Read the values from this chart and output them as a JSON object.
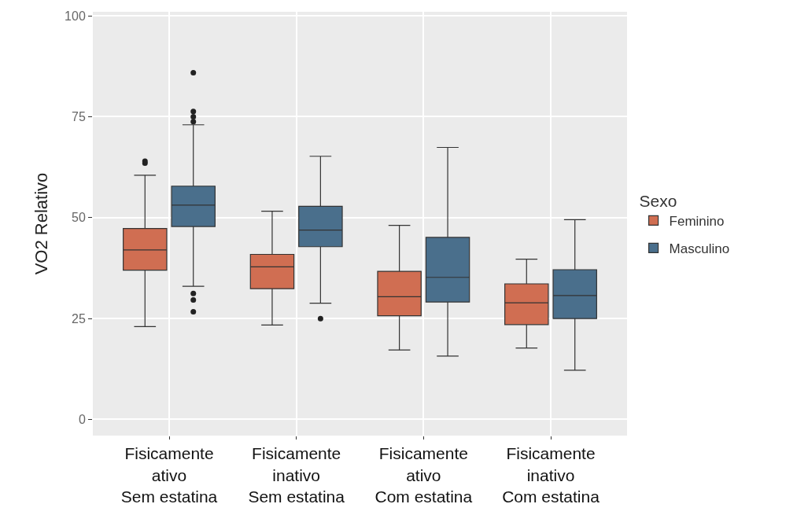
{
  "chart_data": {
    "type": "box",
    "ylabel": "VO2 Relativo",
    "legend_title": "Sexo",
    "categories": [
      "Fisicamente\nativo\nSem estatina",
      "Fisicamente\ninativo\nSem estatina",
      "Fisicamente\nativo\nCom estatina",
      "Fisicamente\ninativo\nCom estatina"
    ],
    "series": [
      {
        "name": "Feminino",
        "color": "#d06e52",
        "boxes": [
          {
            "low": 23,
            "q1": 37,
            "median": 42,
            "q3": 47.3,
            "high": 60.5,
            "outliers": [
              63.5,
              64
            ]
          },
          {
            "low": 23.4,
            "q1": 32.4,
            "median": 37.8,
            "q3": 40.9,
            "high": 51.6
          },
          {
            "low": 17.2,
            "q1": 25.7,
            "median": 30.4,
            "q3": 36.7,
            "high": 48.1
          },
          {
            "low": 17.7,
            "q1": 23.5,
            "median": 28.9,
            "q3": 33.6,
            "high": 39.7
          }
        ]
      },
      {
        "name": "Masculino",
        "color": "#4a6f8c",
        "boxes": [
          {
            "low": 33,
            "q1": 47.8,
            "median": 53.1,
            "q3": 57.8,
            "high": 73,
            "outliers": [
              26.7,
              29.6,
              31.2,
              73.8,
              75,
              76.3,
              85.9
            ]
          },
          {
            "low": 28.8,
            "q1": 42.8,
            "median": 46.9,
            "q3": 52.8,
            "high": 65.2,
            "outliers": [
              25
            ]
          },
          {
            "low": 15.7,
            "q1": 29.1,
            "median": 35.2,
            "q3": 45.1,
            "high": 67.4
          },
          {
            "low": 12.2,
            "q1": 25,
            "median": 30.7,
            "q3": 37.1,
            "high": 49.5
          }
        ]
      }
    ],
    "ylim": [
      -4,
      101
    ],
    "yticks": [
      0,
      25,
      50,
      75,
      100
    ],
    "grid": true,
    "legend": "right"
  }
}
